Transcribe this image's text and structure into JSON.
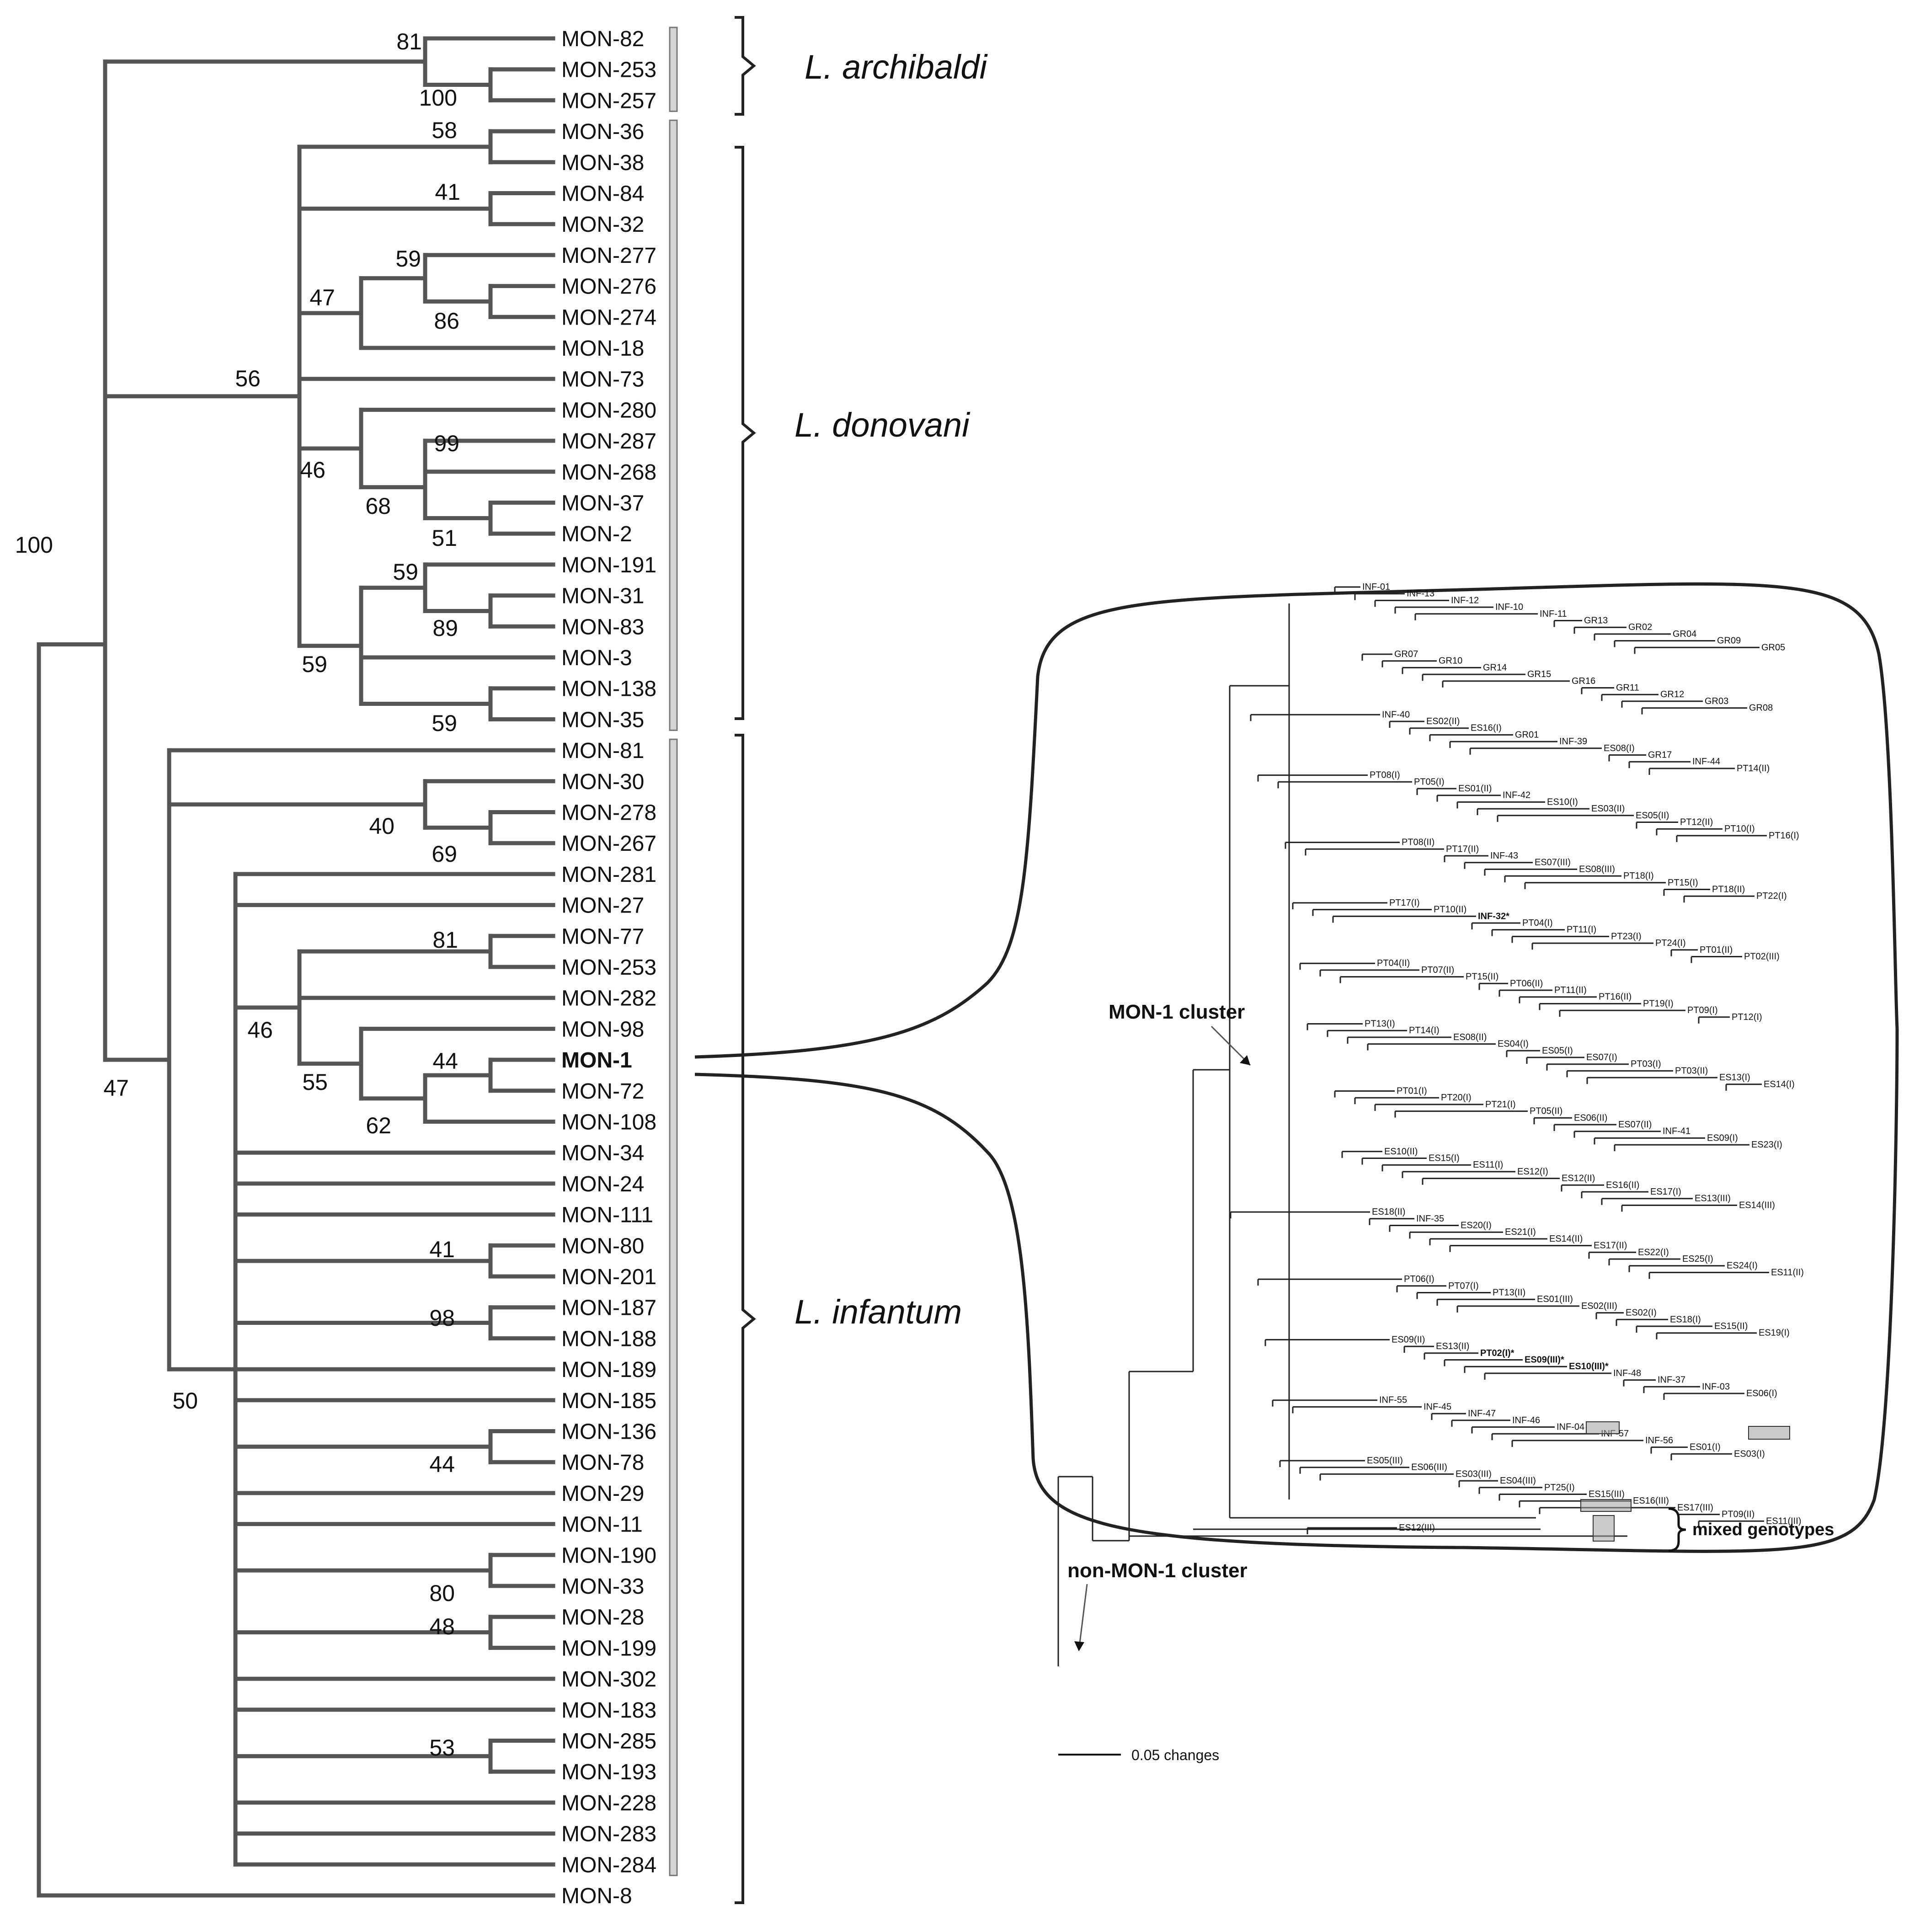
{
  "figure": {
    "species_labels": [
      "L. archibaldi",
      "L. donovani",
      "L. infantum"
    ],
    "mon1_label": "MON-1",
    "left_leaves": [
      "MON-82",
      "MON-253",
      "MON-257",
      "MON-36",
      "MON-38",
      "MON-84",
      "MON-32",
      "MON-277",
      "MON-276",
      "MON-274",
      "MON-18",
      "MON-73",
      "MON-280",
      "MON-287",
      "MON-268",
      "MON-37",
      "MON-2",
      "MON-191",
      "MON-31",
      "MON-83",
      "MON-3",
      "MON-138",
      "MON-35",
      "MON-81",
      "MON-30",
      "MON-278",
      "MON-267",
      "MON-281",
      "MON-27",
      "MON-77",
      "MON-253",
      "MON-282",
      "MON-98",
      "MON-1",
      "MON-72",
      "MON-108",
      "MON-34",
      "MON-24",
      "MON-111",
      "MON-80",
      "MON-201",
      "MON-187",
      "MON-188",
      "MON-189",
      "MON-185",
      "MON-136",
      "MON-78",
      "MON-29",
      "MON-11",
      "MON-190",
      "MON-33",
      "MON-28",
      "MON-199",
      "MON-302",
      "MON-183",
      "MON-285",
      "MON-193",
      "MON-228",
      "MON-283",
      "MON-284",
      "MON-8"
    ],
    "bootstrap_values": [
      "81",
      "100",
      "58",
      "41",
      "59",
      "47",
      "86",
      "56",
      "99",
      "46",
      "68",
      "51",
      "59",
      "89",
      "59",
      "59",
      "100",
      "40",
      "69",
      "81",
      "46",
      "44",
      "55",
      "62",
      "47",
      "41",
      "98",
      "50",
      "44",
      "80",
      "48",
      "53"
    ],
    "clusters": {
      "mon1_cluster": "MON-1 cluster",
      "non_mon1_cluster": "non-MON-1 cluster",
      "mixed_genotypes": "mixed genotypes"
    },
    "scale_bar": "0.05 changes",
    "right_labels": [
      "INF-01",
      "INF-13",
      "INF-12",
      "INF-10",
      "INF-11",
      "GR13",
      "GR02",
      "GR04",
      "GR09",
      "GR05",
      "GR07",
      "GR10",
      "GR14",
      "GR15",
      "GR16",
      "GR11",
      "GR12",
      "GR03",
      "GR08",
      "INF-40",
      "ES02(II)",
      "ES16(I)",
      "GR01",
      "INF-39",
      "ES08(I)",
      "GR17",
      "INF-44",
      "PT14(II)",
      "PT08(I)",
      "PT05(I)",
      "ES01(II)",
      "INF-42",
      "ES10(I)",
      "ES03(II)",
      "ES05(II)",
      "PT12(II)",
      "PT10(I)",
      "PT16(I)",
      "PT08(II)",
      "PT17(II)",
      "INF-43",
      "ES07(III)",
      "ES08(III)",
      "PT18(I)",
      "PT15(I)",
      "PT18(II)",
      "PT22(I)",
      "PT17(I)",
      "PT10(II)",
      "INF-32*",
      "PT04(I)",
      "PT11(I)",
      "PT23(I)",
      "PT24(I)",
      "PT01(II)",
      "PT02(III)",
      "PT04(II)",
      "PT07(II)",
      "PT15(II)",
      "PT06(II)",
      "PT11(II)",
      "PT16(II)",
      "PT19(I)",
      "PT09(I)",
      "PT12(I)",
      "PT13(I)",
      "PT14(I)",
      "ES08(II)",
      "ES04(I)",
      "ES05(I)",
      "ES07(I)",
      "PT03(I)",
      "PT03(II)",
      "ES13(I)",
      "ES14(I)",
      "PT01(I)",
      "PT20(I)",
      "PT21(I)",
      "PT05(II)",
      "ES06(II)",
      "ES07(II)",
      "INF-41",
      "ES09(I)",
      "ES23(I)",
      "ES10(II)",
      "ES15(I)",
      "ES11(I)",
      "ES12(I)",
      "ES12(II)",
      "ES16(II)",
      "ES17(I)",
      "ES13(III)",
      "ES14(III)",
      "ES18(II)",
      "INF-35",
      "ES20(I)",
      "ES21(I)",
      "ES14(II)",
      "ES17(II)",
      "ES22(I)",
      "ES25(I)",
      "ES24(I)",
      "ES11(II)",
      "PT06(I)",
      "PT07(I)",
      "PT13(II)",
      "ES01(III)",
      "ES02(III)",
      "ES02(I)",
      "ES18(I)",
      "ES15(II)",
      "ES19(I)",
      "ES09(II)",
      "ES13(II)",
      "PT02(I)*",
      "ES09(III)*",
      "ES10(III)*",
      "INF-48",
      "INF-37",
      "INF-03",
      "ES06(I)",
      "INF-55",
      "INF-45",
      "INF-47",
      "INF-46",
      "INF-04",
      "INF-57",
      "INF-56",
      "ES01(I)",
      "ES03(I)",
      "ES05(III)",
      "ES06(III)",
      "ES03(III)",
      "ES04(III)",
      "PT25(I)",
      "ES15(III)",
      "ES16(III)",
      "ES17(III)",
      "PT09(II)",
      "ES11(III)",
      "ES12(III)"
    ]
  }
}
